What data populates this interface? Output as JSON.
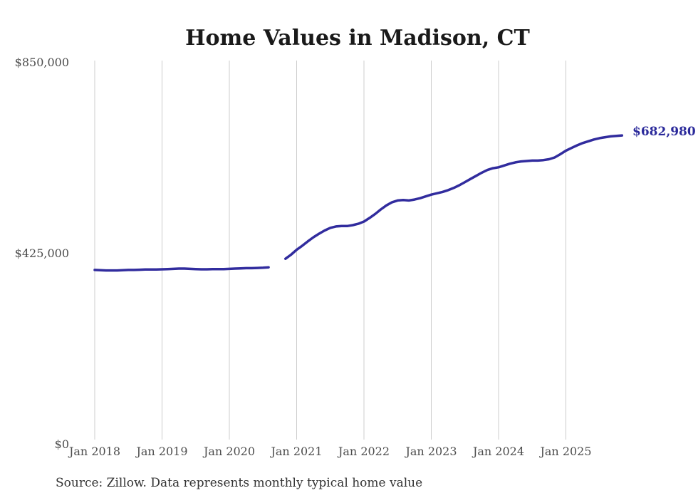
{
  "chart": {
    "title": "Home Values in Madison, CT",
    "latest_value_label": "$682,980",
    "source_note": "Source: Zillow. Data represents monthly typical home value",
    "colors": {
      "line": "#312c9e",
      "end_label": "#2b2a9b",
      "grid": "#cccccc",
      "axis_labels": "#4d4d4d",
      "title": "#1a1a1a",
      "source": "#333333",
      "background": "#ffffff"
    }
  },
  "chart_data": {
    "type": "line",
    "title": "Home Values in Madison, CT",
    "xlabel": "",
    "ylabel": "",
    "ylim": [
      0,
      850000
    ],
    "y_ticks": [
      0,
      425000,
      850000
    ],
    "y_tick_labels": [
      "$0",
      "$425,000",
      "$850,000"
    ],
    "x_tick_labels": [
      "Jan 2018",
      "Jan 2019",
      "Jan 2020",
      "Jan 2021",
      "Jan 2022",
      "Jan 2023",
      "Jan 2024",
      "Jan 2025"
    ],
    "grid": "vertical gridlines only",
    "legend": "none",
    "annotations": [
      {
        "text": "$682,980",
        "position": "right of last data point",
        "color": "#2b2a9b"
      }
    ],
    "data_gap_months": [
      "2020-09",
      "2020-10"
    ],
    "series": [
      {
        "name": "Monthly typical home value",
        "x": [
          "2018-01",
          "2018-02",
          "2018-03",
          "2018-04",
          "2018-05",
          "2018-06",
          "2018-07",
          "2018-08",
          "2018-09",
          "2018-10",
          "2018-11",
          "2018-12",
          "2019-01",
          "2019-02",
          "2019-03",
          "2019-04",
          "2019-05",
          "2019-06",
          "2019-07",
          "2019-08",
          "2019-09",
          "2019-10",
          "2019-11",
          "2019-12",
          "2020-01",
          "2020-02",
          "2020-03",
          "2020-04",
          "2020-05",
          "2020-06",
          "2020-07",
          "2020-08",
          "2020-09",
          "2020-10",
          "2020-11",
          "2020-12",
          "2021-01",
          "2021-02",
          "2021-03",
          "2021-04",
          "2021-05",
          "2021-06",
          "2021-07",
          "2021-08",
          "2021-09",
          "2021-10",
          "2021-11",
          "2021-12",
          "2022-01",
          "2022-02",
          "2022-03",
          "2022-04",
          "2022-05",
          "2022-06",
          "2022-07",
          "2022-08",
          "2022-09",
          "2022-10",
          "2022-11",
          "2022-12",
          "2023-01",
          "2023-02",
          "2023-03",
          "2023-04",
          "2023-05",
          "2023-06",
          "2023-07",
          "2023-08",
          "2023-09",
          "2023-10",
          "2023-11",
          "2023-12",
          "2024-01",
          "2024-02",
          "2024-03",
          "2024-04",
          "2024-05",
          "2024-06",
          "2024-07",
          "2024-08",
          "2024-09",
          "2024-10",
          "2024-11",
          "2024-12",
          "2025-01",
          "2025-02",
          "2025-03",
          "2025-04",
          "2025-05",
          "2025-06",
          "2025-07",
          "2025-08",
          "2025-09",
          "2025-10",
          "2025-11"
        ],
        "values": [
          383000,
          382500,
          382000,
          382000,
          382000,
          382500,
          383000,
          383000,
          383500,
          384000,
          384000,
          384000,
          384500,
          385000,
          385500,
          386000,
          386000,
          385500,
          385000,
          384500,
          384500,
          385000,
          385000,
          385000,
          385500,
          386000,
          386500,
          387000,
          387000,
          387500,
          388000,
          389000,
          null,
          null,
          408000,
          417000,
          428000,
          437000,
          447000,
          456000,
          464000,
          471000,
          477000,
          480000,
          481000,
          481000,
          483000,
          486000,
          491000,
          499000,
          508000,
          518000,
          527000,
          534000,
          538000,
          539000,
          538000,
          540000,
          543000,
          547000,
          551000,
          554000,
          557000,
          561000,
          566000,
          572000,
          579000,
          586000,
          593000,
          600000,
          606000,
          610000,
          612000,
          616000,
          620000,
          623000,
          625000,
          626000,
          627000,
          627000,
          628000,
          630000,
          634000,
          641000,
          649000,
          655000,
          661000,
          666000,
          670000,
          674000,
          677000,
          679000,
          681000,
          682000,
          682980
        ]
      }
    ]
  }
}
